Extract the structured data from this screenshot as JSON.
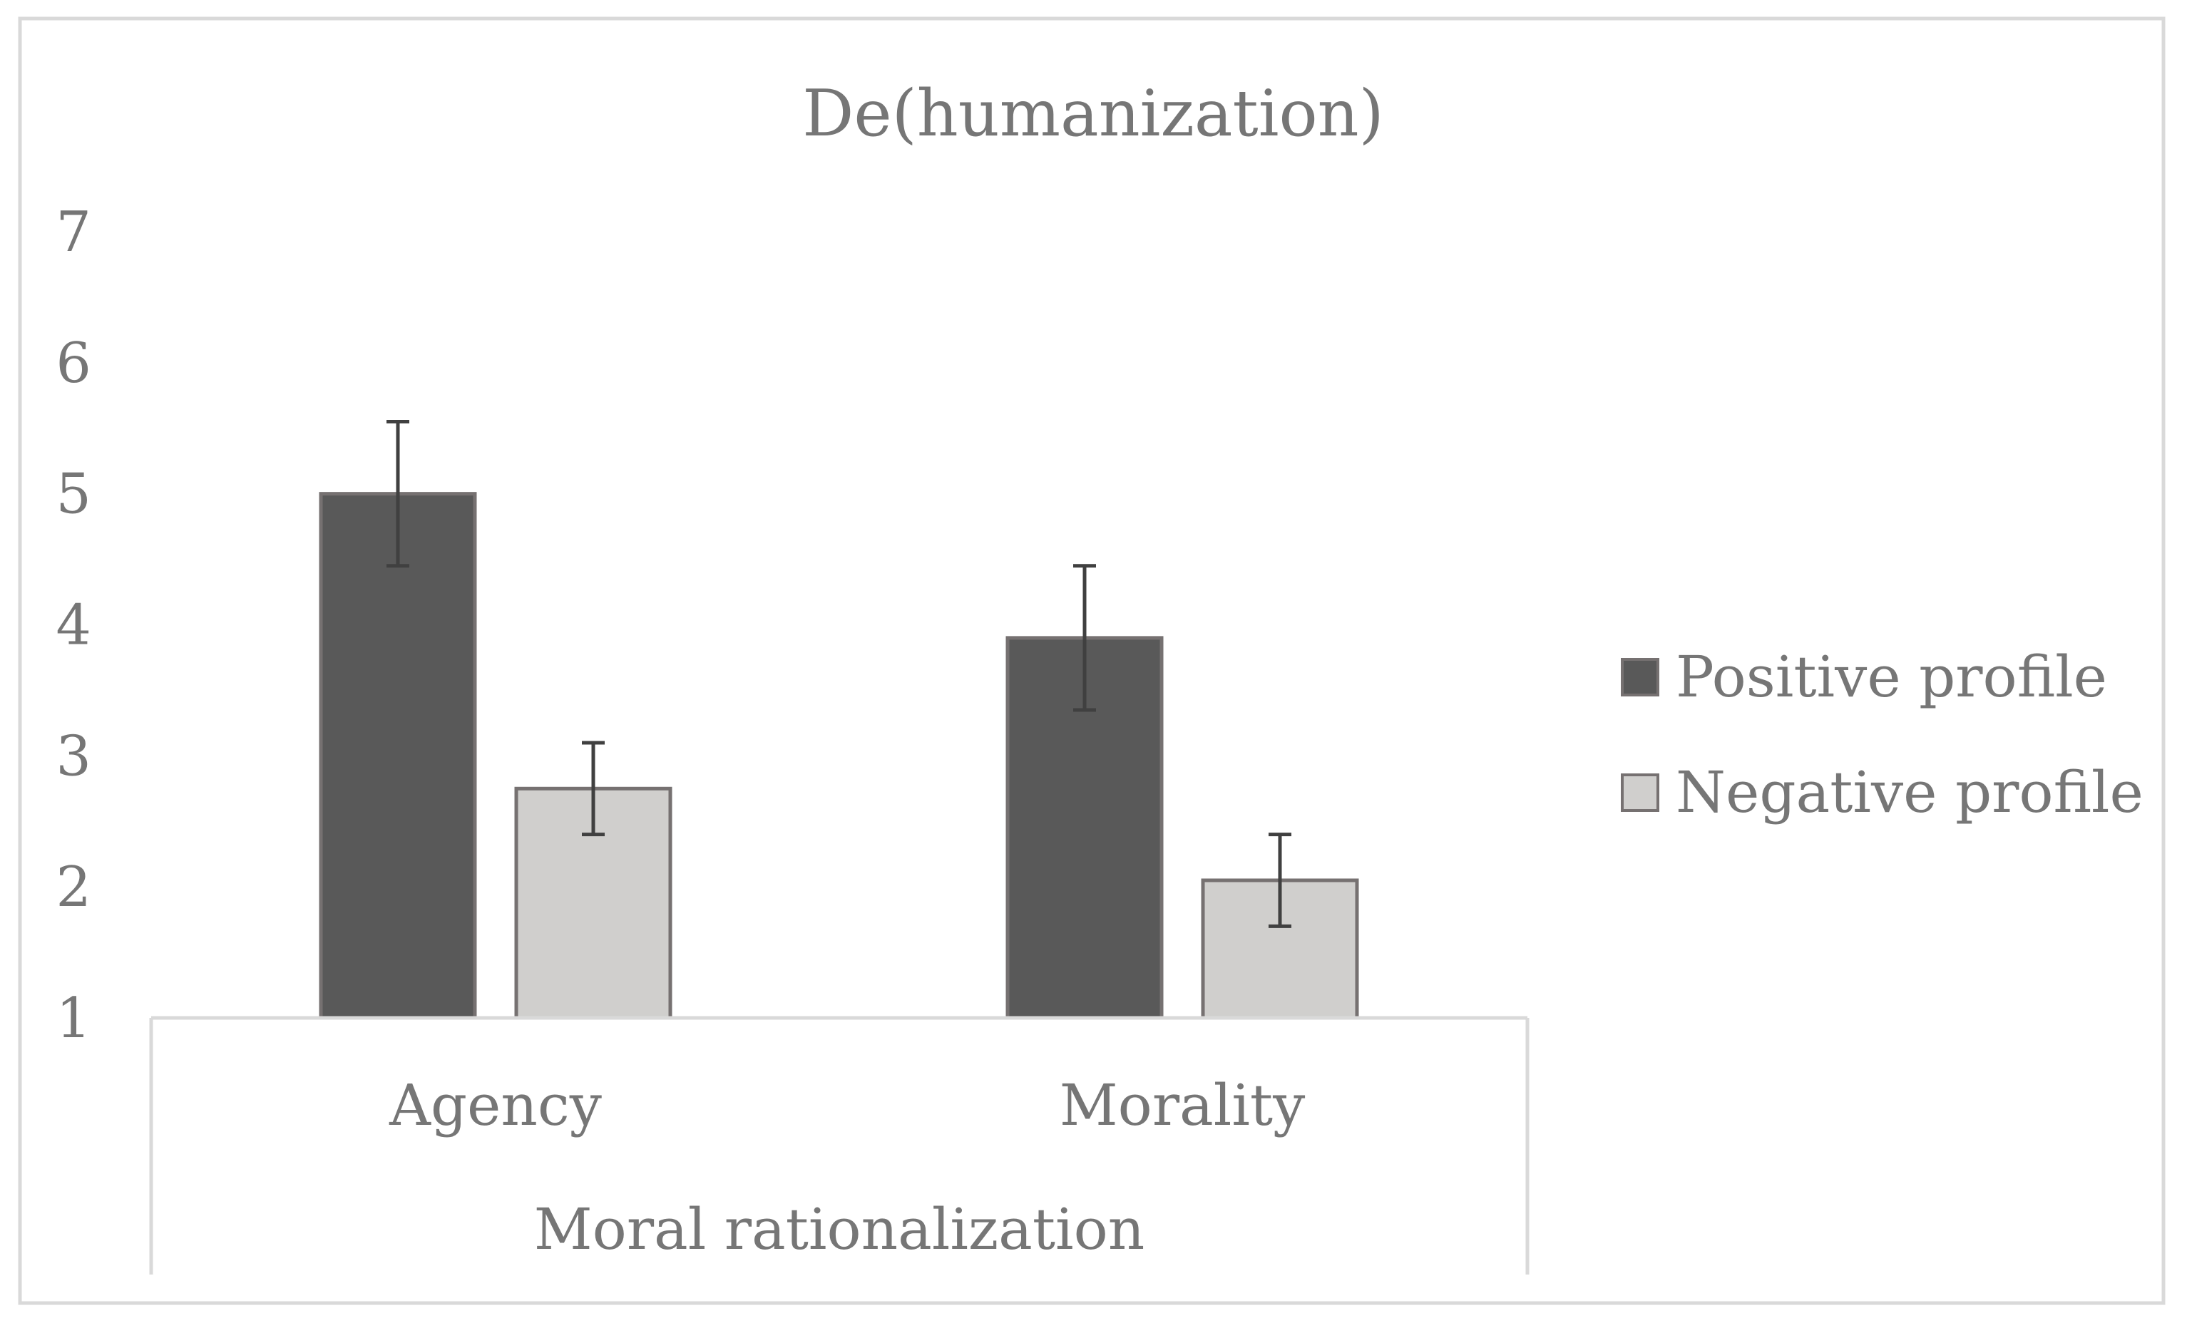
{
  "chart_data": {
    "type": "bar",
    "title": "De(humanization)",
    "categories": [
      "Agency",
      "Morality"
    ],
    "group_label": "Moral rationalization",
    "series": [
      {
        "name": "Positive profile",
        "values": [
          5.0,
          3.9
        ],
        "errors": [
          0.55,
          0.55
        ],
        "color": "#595959"
      },
      {
        "name": "Negative profile",
        "values": [
          2.75,
          2.05
        ],
        "errors": [
          0.35,
          0.35
        ],
        "color": "#d0cfcd"
      }
    ],
    "ylim": [
      1,
      7
    ],
    "yticks": [
      "1",
      "2",
      "3",
      "4",
      "5",
      "6",
      "7"
    ],
    "legend_position": "right",
    "grid": false,
    "xlabel": "",
    "ylabel": ""
  },
  "colors": {
    "frame": "#d9d9d9",
    "text": "#767676",
    "bar_edge": "#767171",
    "error_bar": "#404040"
  }
}
